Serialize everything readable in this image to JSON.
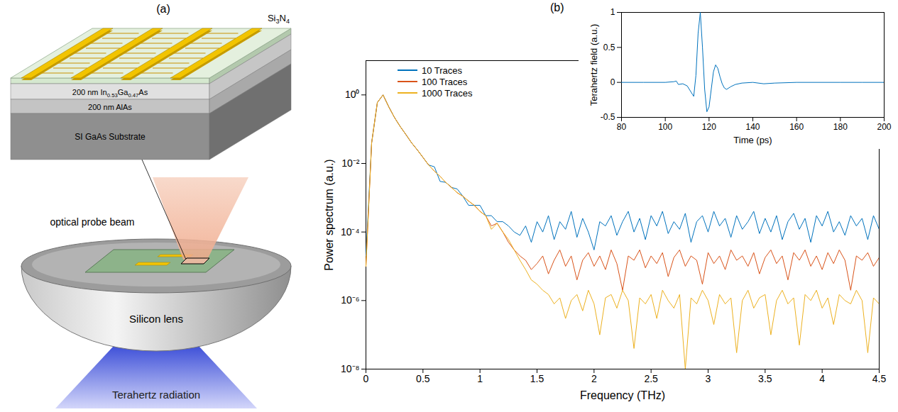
{
  "diagram": {
    "panel": "(a)",
    "coating": [
      "Si",
      "3",
      "N",
      "4"
    ],
    "layers": [
      [
        "200 nm In",
        "0.53",
        "Ga",
        "0.47",
        "As"
      ],
      [
        "200 nm AlAs"
      ],
      [
        "SI GaAs Substrate"
      ]
    ],
    "probe_label": "optical probe beam",
    "lens_label": "Silicon lens",
    "radiation_label": "Terahertz radiation"
  },
  "chart_data": [
    {
      "panel": "(b)",
      "type": "line",
      "x_label": "Frequency (THz)",
      "y_label": "Power spectrum (a.u.)",
      "x": [
        0,
        0.05,
        0.1,
        0.15,
        0.2,
        0.25,
        0.3,
        0.35,
        0.4,
        0.45,
        0.5,
        0.55,
        0.6,
        0.65,
        0.7,
        0.75,
        0.8,
        0.85,
        0.9,
        0.95,
        1,
        1.05,
        1.1,
        1.15,
        1.2,
        1.25,
        1.3,
        1.35,
        1.4,
        1.45,
        1.5,
        1.55,
        1.6,
        1.65,
        1.7,
        1.75,
        1.8,
        1.85,
        1.9,
        1.95,
        2,
        2.05,
        2.1,
        2.15,
        2.2,
        2.25,
        2.3,
        2.35,
        2.4,
        2.45,
        2.5,
        2.55,
        2.6,
        2.65,
        2.7,
        2.75,
        2.8,
        2.85,
        2.9,
        2.95,
        3,
        3.05,
        3.1,
        3.15,
        3.2,
        3.25,
        3.3,
        3.35,
        3.4,
        3.45,
        3.5,
        3.55,
        3.6,
        3.65,
        3.7,
        3.75,
        3.8,
        3.85,
        3.9,
        3.95,
        4,
        4.05,
        4.1,
        4.15,
        4.2,
        4.25,
        4.3,
        4.35,
        4.4,
        4.45,
        4.5
      ],
      "series": [
        {
          "name": "10 Traces",
          "color": "#0072BD",
          "values": [
            2e-05,
            0.04,
            0.6,
            1,
            0.45,
            0.22,
            0.12,
            0.07,
            0.04,
            0.025,
            0.015,
            0.009,
            0.008,
            0.003,
            0.0028,
            0.002,
            0.0018,
            0.0011,
            0.0006,
            0.0006,
            0.0006,
            0.0003,
            0.0003,
            0.0002,
            0.0002,
            0.00015,
            0.0001,
            8e-05,
            0.00015,
            5e-05,
            0.0002,
            0.0001,
            0.0003,
            6e-05,
            0.0002,
            0.00012,
            0.0004,
            7e-05,
            0.00025,
            0.0001,
            3e-05,
            0.0002,
            0.00015,
            0.0003,
            8e-05,
            0.0002,
            0.0004,
            0.0001,
            0.00025,
            6e-05,
            0.0003,
            0.00015,
            0.0004,
            9e-05,
            0.0002,
            0.00012,
            0.00035,
            5e-05,
            0.0002,
            0.0003,
            0.0001,
            0.0004,
            0.00015,
            0.00025,
            7e-05,
            0.0003,
            0.00012,
            0.0002,
            0.0004,
            9e-05,
            0.00025,
            0.0001,
            0.0003,
            6e-05,
            0.0002,
            0.00035,
            0.00012,
            0.00025,
            5e-05,
            0.0003,
            0.00015,
            0.0004,
            0.0001,
            0.0002,
            8e-05,
            0.0003,
            0.00015,
            0.00025,
            6e-05,
            0.0003,
            0.00012
          ]
        },
        {
          "name": "100 Traces",
          "color": "#D95319",
          "values": [
            1e-05,
            0.04,
            0.6,
            1,
            0.45,
            0.22,
            0.12,
            0.07,
            0.04,
            0.025,
            0.015,
            0.009,
            0.006,
            0.0042,
            0.0028,
            0.002,
            0.0014,
            0.0011,
            0.0008,
            0.0006,
            0.0004,
            0.0003,
            0.00015,
            0.00018,
            0.0001,
            5e-05,
            3e-05,
            2e-05,
            1.5e-05,
            8e-06,
            1.2e-05,
            2e-05,
            6e-06,
            1.5e-05,
            3e-05,
            1e-05,
            2e-05,
            4e-06,
            1.5e-05,
            2.5e-05,
            1e-05,
            2e-05,
            8e-06,
            3e-05,
            1.2e-05,
            2e-06,
            2e-05,
            1.5e-05,
            3e-05,
            9e-06,
            2e-05,
            1.2e-05,
            2.5e-05,
            5e-06,
            1.8e-05,
            3e-05,
            1e-05,
            2e-05,
            1.5e-05,
            3e-06,
            2.5e-05,
            1.2e-05,
            2e-05,
            8e-06,
            3e-05,
            1.5e-05,
            2e-05,
            1e-05,
            2.5e-05,
            6e-06,
            1.8e-05,
            3e-05,
            1.2e-05,
            2e-05,
            4e-06,
            2.5e-05,
            1.5e-05,
            3e-05,
            1e-05,
            2e-05,
            8e-06,
            2.5e-05,
            1.2e-05,
            3e-05,
            1.5e-05,
            2e-06,
            2e-05,
            1.5e-05,
            2.5e-05,
            1e-05,
            1.8e-05
          ]
        },
        {
          "name": "1000 Traces",
          "color": "#EDB120",
          "values": [
            1e-05,
            0.04,
            0.6,
            1,
            0.45,
            0.22,
            0.12,
            0.07,
            0.04,
            0.025,
            0.015,
            0.009,
            0.006,
            0.0042,
            0.0028,
            0.002,
            0.0014,
            0.0011,
            0.0008,
            0.0006,
            0.0004,
            0.0003,
            0.00012,
            0.00018,
            0.0001,
            6e-05,
            3e-05,
            1.5e-05,
            8e-06,
            4e-06,
            3e-06,
            2e-06,
            1.5e-06,
            8e-07,
            1.2e-06,
            3e-07,
            1e-06,
            1.5e-06,
            5e-07,
            2e-06,
            8e-07,
            1e-07,
            1.2e-06,
            1.5e-06,
            6e-07,
            2e-06,
            1e-06,
            4e-08,
            1.2e-06,
            8e-07,
            1.5e-06,
            3e-07,
            2e-06,
            1e-06,
            6e-07,
            1.5e-06,
            1e-08,
            1.2e-06,
            8e-07,
            2e-06,
            1e-06,
            2e-07,
            1.5e-06,
            8e-07,
            1.2e-06,
            3e-08,
            1e-06,
            2e-06,
            6e-07,
            1.2e-06,
            1.5e-06,
            1e-07,
            1e-06,
            2e-06,
            8e-07,
            1.2e-06,
            5e-08,
            1.5e-06,
            1e-06,
            2e-06,
            6e-07,
            1.2e-06,
            2e-07,
            1.5e-06,
            1e-06,
            8e-07,
            2e-06,
            1e-06,
            3e-08,
            1.2e-06,
            8e-07
          ]
        }
      ],
      "xlim": [
        0,
        4.5
      ],
      "xticks": [
        0,
        0.5,
        1,
        1.5,
        2,
        2.5,
        3,
        3.5,
        4,
        4.5
      ],
      "ylim": [
        1e-08,
        10
      ],
      "yticks": [
        {
          "value": 1e-08,
          "label": "10⁻⁸"
        },
        {
          "value": 1e-06,
          "label": "10⁻⁶"
        },
        {
          "value": 0.0001,
          "label": "10⁻⁴"
        },
        {
          "value": 0.01,
          "label": "10⁻²"
        },
        {
          "value": 1,
          "label": "10⁰"
        }
      ],
      "log": "y",
      "grid": false,
      "legend": "top-left"
    },
    {
      "type": "line",
      "x_label": "Time (ps)",
      "y_label": "Terahertz field (a.u.)",
      "x": [
        80,
        90,
        100,
        104,
        105,
        106,
        108,
        110,
        112,
        113,
        114,
        115,
        116,
        117,
        118,
        119,
        120,
        121,
        122,
        123,
        124,
        125,
        126,
        127,
        128,
        130,
        132,
        135,
        140,
        145,
        150,
        160,
        170,
        180,
        190,
        200
      ],
      "series": [
        {
          "color": "#0072BD",
          "values": [
            0,
            0,
            0,
            0.01,
            0.02,
            -0.03,
            -0.02,
            -0.05,
            -0.15,
            -0.2,
            0.1,
            0.7,
            1.0,
            0.5,
            -0.1,
            -0.42,
            -0.35,
            -0.1,
            0.15,
            0.25,
            0.2,
            0.08,
            -0.02,
            -0.08,
            -0.1,
            -0.06,
            -0.03,
            -0.01,
            0,
            -0.02,
            -0.01,
            0,
            0,
            0,
            0,
            0
          ]
        }
      ],
      "xlim": [
        80,
        200
      ],
      "xticks": [
        80,
        100,
        120,
        140,
        160,
        180,
        200
      ],
      "ylim": [
        -0.5,
        1
      ],
      "yticks": [
        -0.5,
        0,
        0.5,
        1
      ],
      "grid": false
    }
  ]
}
